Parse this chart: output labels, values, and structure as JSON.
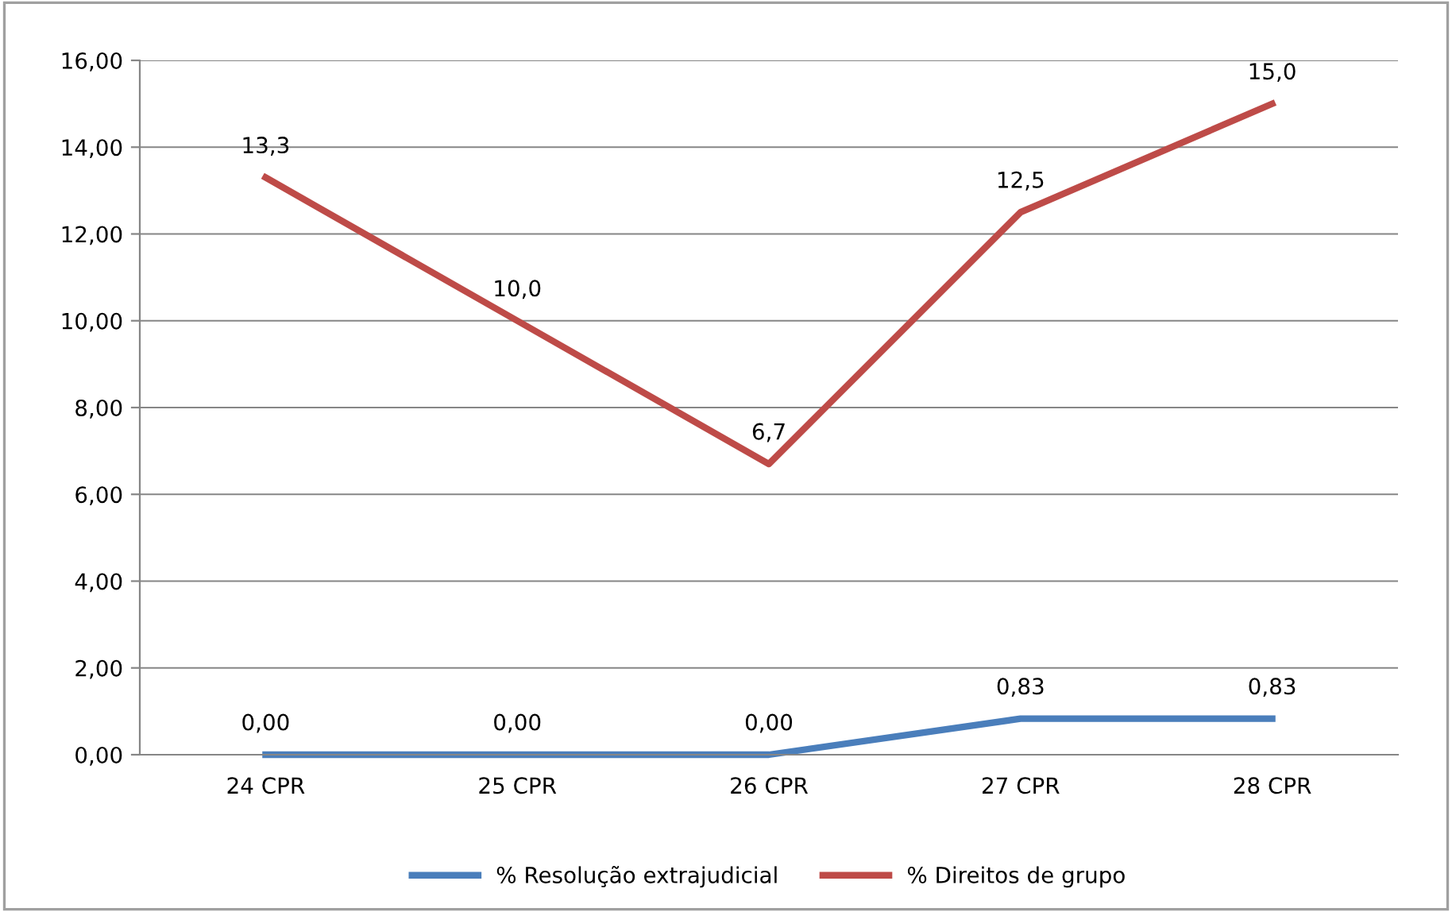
{
  "chart_data": {
    "type": "line",
    "categories": [
      "24 CPR",
      "25 CPR",
      "26 CPR",
      "27 CPR",
      "28 CPR"
    ],
    "series": [
      {
        "name": "% Resolução extrajudicial",
        "color": "#4a7ebb",
        "values": [
          0.0,
          0.0,
          0.0,
          0.83,
          0.83
        ],
        "value_labels": [
          "0,00",
          "0,00",
          "0,00",
          "0,83",
          "0,83"
        ]
      },
      {
        "name": "% Direitos de grupo",
        "color": "#be4b48",
        "values": [
          13.3,
          10.0,
          6.7,
          12.5,
          15.0
        ],
        "value_labels": [
          "13,3",
          "10,0",
          "6,7",
          "12,5",
          "15,0"
        ]
      }
    ],
    "ylim": [
      0,
      16
    ],
    "yticks": [
      {
        "value": 0,
        "label": "0,00"
      },
      {
        "value": 2,
        "label": "2,00"
      },
      {
        "value": 4,
        "label": "4,00"
      },
      {
        "value": 6,
        "label": "6,00"
      },
      {
        "value": 8,
        "label": "8,00"
      },
      {
        "value": 10,
        "label": "10,00"
      },
      {
        "value": 12,
        "label": "12,00"
      },
      {
        "value": 14,
        "label": "14,00"
      },
      {
        "value": 16,
        "label": "16,00"
      }
    ],
    "grid": "y",
    "legend": "bottom",
    "marker": "none",
    "line_style": "solid"
  }
}
